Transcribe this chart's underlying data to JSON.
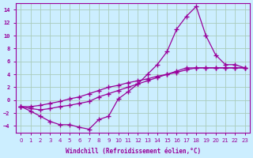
{
  "background_color": "#cceeff",
  "grid_color": "#aaccbb",
  "line_color": "#990099",
  "xlim": [
    -0.5,
    23.5
  ],
  "ylim": [
    -5,
    15
  ],
  "xlabel": "Windchill (Refroidissement éolien,°C)",
  "xticks": [
    0,
    1,
    2,
    3,
    4,
    5,
    6,
    7,
    8,
    9,
    10,
    11,
    12,
    13,
    14,
    15,
    16,
    17,
    18,
    19,
    20,
    21,
    22,
    23
  ],
  "yticks": [
    -4,
    -2,
    0,
    2,
    4,
    6,
    8,
    10,
    12,
    14
  ],
  "line1_x": [
    0,
    1,
    2,
    3,
    4,
    5,
    6,
    7,
    8,
    9,
    10,
    11,
    12,
    13,
    14,
    15,
    16,
    17,
    18,
    19,
    20,
    21,
    22,
    23
  ],
  "line1_y": [
    -1.0,
    -1.7,
    -2.5,
    -3.3,
    -3.8,
    -3.8,
    -4.2,
    -4.5,
    -3.0,
    -2.5,
    0.2,
    1.3,
    2.5,
    4.0,
    5.5,
    7.5,
    11.0,
    13.0,
    14.5,
    10.0,
    7.0,
    5.5,
    5.5,
    5.0
  ],
  "line2_x": [
    0,
    1,
    2,
    3,
    4,
    5,
    6,
    7,
    8,
    9,
    10,
    11,
    12,
    13,
    14,
    15,
    16,
    17,
    18,
    19,
    20,
    21,
    22,
    23
  ],
  "line2_y": [
    -1.0,
    -1.0,
    -0.8,
    -0.5,
    -0.2,
    0.2,
    0.5,
    1.0,
    1.5,
    2.0,
    2.3,
    2.7,
    3.0,
    3.3,
    3.7,
    4.0,
    4.3,
    4.7,
    5.0,
    5.0,
    5.0,
    5.0,
    5.0,
    5.0
  ],
  "line3_x": [
    0,
    1,
    2,
    3,
    4,
    5,
    6,
    7,
    8,
    9,
    10,
    11,
    12,
    13,
    14,
    15,
    16,
    17,
    18,
    19,
    20,
    21,
    22,
    23
  ],
  "line3_y": [
    -1.0,
    -1.3,
    -1.5,
    -1.3,
    -1.0,
    -0.8,
    -0.5,
    -0.2,
    0.5,
    1.0,
    1.5,
    2.0,
    2.5,
    3.0,
    3.5,
    4.0,
    4.5,
    5.0,
    5.0,
    5.0,
    5.0,
    5.0,
    5.0,
    5.0
  ]
}
